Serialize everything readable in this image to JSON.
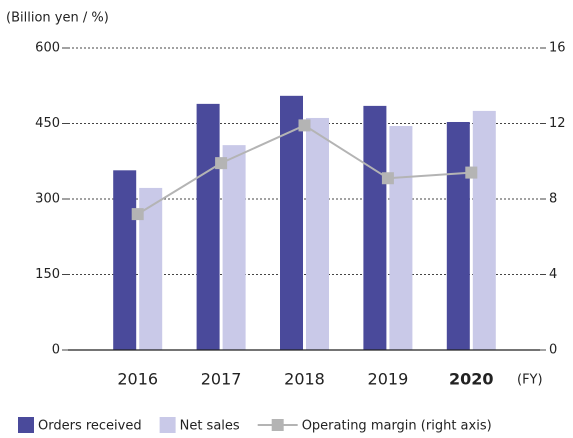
{
  "chart_data": {
    "type": "bar",
    "y_label": "(Billion yen / %)",
    "x_label": "(FY)",
    "categories": [
      "2016",
      "2017",
      "2018",
      "2019",
      "2020"
    ],
    "series": [
      {
        "name": "Orders received",
        "color": "#4a4a9b",
        "values": [
          357,
          489,
          505,
          485,
          453
        ]
      },
      {
        "name": "Net sales",
        "color": "#c9c9e8",
        "values": [
          322,
          407,
          461,
          445,
          475
        ]
      },
      {
        "name": "Operating margin (right axis)",
        "color": "#b4b4b4",
        "type": "line",
        "axis": "y2",
        "values": [
          7.2,
          9.9,
          11.9,
          9.1,
          9.4
        ]
      }
    ],
    "ylim": [
      0,
      600
    ],
    "yticks": [
      0,
      150,
      300,
      450,
      600
    ],
    "y2lim": [
      0,
      16
    ],
    "y2ticks": [
      0,
      4,
      8,
      12,
      16
    ],
    "grid": true
  }
}
